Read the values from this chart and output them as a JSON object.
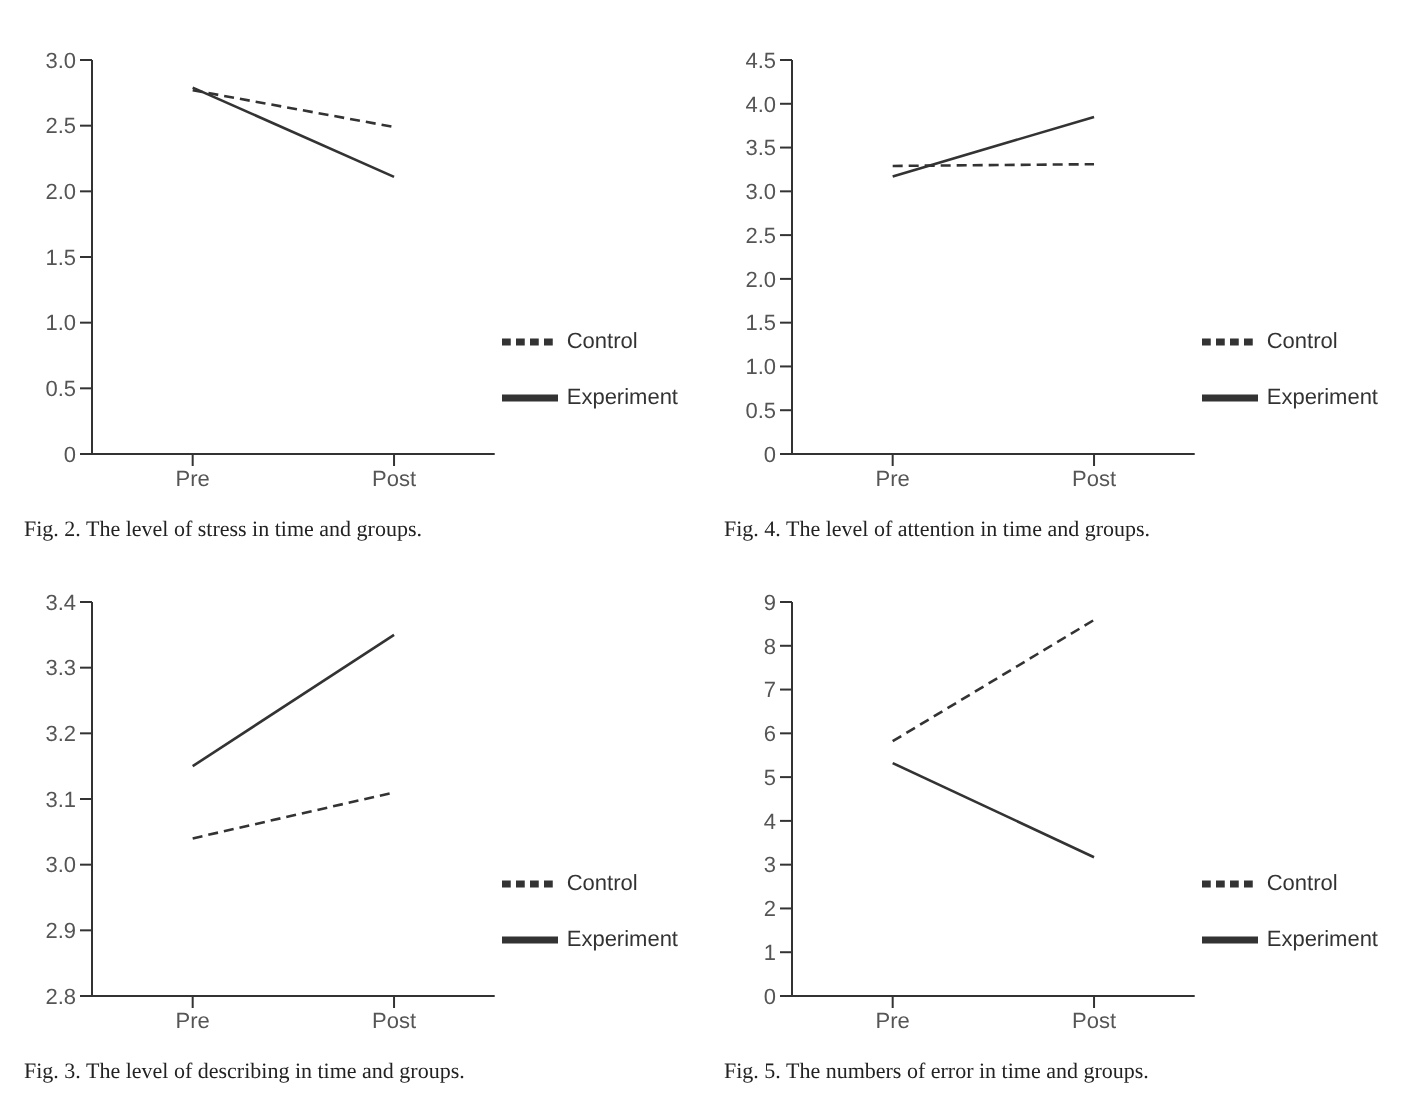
{
  "chart_data": [
    {
      "type": "line",
      "title": "Fig. 2. The level of stress in time and groups.",
      "categories": [
        "Pre",
        "Post"
      ],
      "ylim": [
        0,
        3
      ],
      "yticks": [
        0,
        0.5,
        {
          "value": 1,
          "label": "1.0"
        },
        1.5,
        {
          "value": 2,
          "label": "2.0"
        },
        2.5,
        {
          "value": 3,
          "label": "3.0"
        }
      ],
      "grid": false,
      "legend": "bottom right",
      "marker": "none",
      "series": [
        {
          "name": "Control",
          "color": "#333333",
          "line_style": "dashed",
          "values": [
            2.77,
            2.49
          ]
        },
        {
          "name": "Experiment",
          "color": "#333333",
          "line_style": "solid",
          "values": [
            2.79,
            2.11
          ]
        }
      ]
    },
    {
      "type": "line",
      "title": "Fig. 4. The level of attention in time and groups.",
      "categories": [
        "Pre",
        "Post"
      ],
      "ylim": [
        0,
        4.5
      ],
      "yticks": [
        0,
        0.5,
        {
          "value": 1,
          "label": "1.0"
        },
        1.5,
        {
          "value": 2,
          "label": "2.0"
        },
        2.5,
        {
          "value": 3,
          "label": "3.0"
        },
        3.5,
        {
          "value": 4,
          "label": "4.0"
        },
        4.5
      ],
      "grid": false,
      "legend": "bottom right",
      "marker": "none",
      "series": [
        {
          "name": "Control",
          "color": "#333333",
          "line_style": "dashed",
          "values": [
            3.29,
            3.31
          ]
        },
        {
          "name": "Experiment",
          "color": "#333333",
          "line_style": "solid",
          "values": [
            3.17,
            3.85
          ]
        }
      ]
    },
    {
      "type": "line",
      "title": "Fig. 3. The level of describing in time and groups.",
      "categories": [
        "Pre",
        "Post"
      ],
      "ylim": [
        2.8,
        3.4
      ],
      "yticks": [
        2.8,
        2.9,
        {
          "value": 3,
          "label": "3.0"
        },
        3.1,
        3.2,
        3.3,
        3.4
      ],
      "grid": false,
      "legend": "bottom right",
      "marker": "none",
      "series": [
        {
          "name": "Control",
          "color": "#333333",
          "line_style": "dashed",
          "values": [
            3.04,
            3.11
          ]
        },
        {
          "name": "Experiment",
          "color": "#333333",
          "line_style": "solid",
          "values": [
            3.15,
            3.35
          ]
        }
      ]
    },
    {
      "type": "line",
      "title": "Fig. 5. The numbers of error in time and groups.",
      "categories": [
        "Pre",
        "Post"
      ],
      "ylim": [
        0,
        9
      ],
      "yticks": [
        0,
        1,
        2,
        3,
        4,
        5,
        6,
        7,
        8,
        9
      ],
      "grid": false,
      "legend": "bottom right",
      "marker": "none",
      "series": [
        {
          "name": "Control",
          "color": "#333333",
          "line_style": "dashed",
          "values": [
            5.82,
            8.59
          ]
        },
        {
          "name": "Experiment",
          "color": "#333333",
          "line_style": "solid",
          "values": [
            5.32,
            3.17
          ]
        }
      ]
    }
  ]
}
